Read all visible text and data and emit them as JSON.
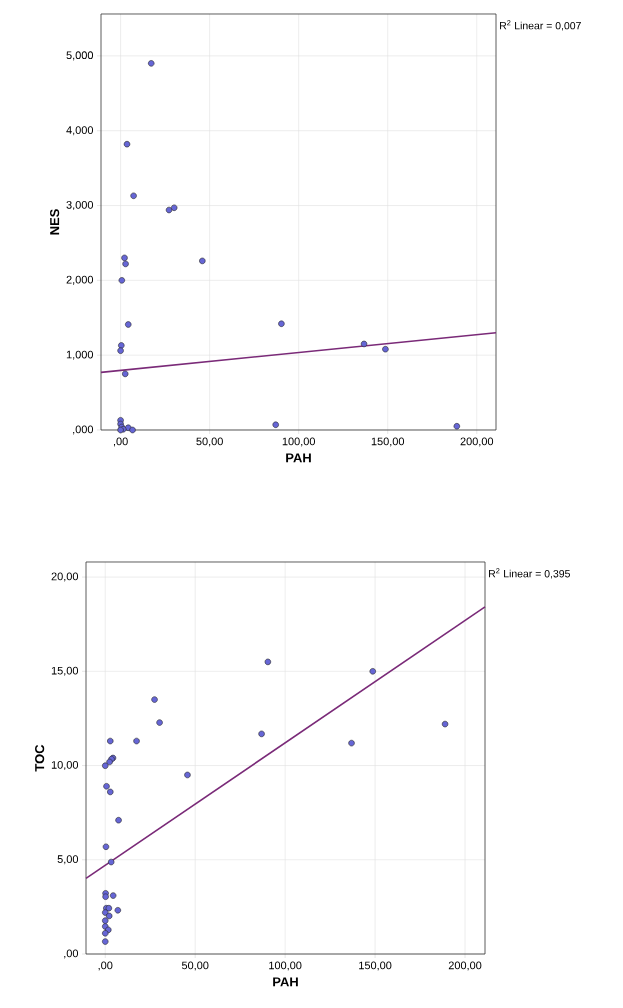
{
  "chart_data": [
    {
      "type": "scatter",
      "xlabel": "PAH",
      "ylabel": "NES",
      "annotations": [
        "R$^{2}$ Linear = 0,007"
      ],
      "grid": true,
      "xlim": [
        -11,
        210.8
      ],
      "ylim": [
        0,
        5.56
      ],
      "xticks": [
        {
          "value": 0,
          "label": ",00"
        },
        {
          "value": 50,
          "label": "50,00"
        },
        {
          "value": 100,
          "label": "100,00"
        },
        {
          "value": 150,
          "label": "150,00"
        },
        {
          "value": 200,
          "label": "200,00"
        }
      ],
      "yticks": [
        {
          "value": 0,
          "label": ",000"
        },
        {
          "value": 1,
          "label": "1,000"
        },
        {
          "value": 2,
          "label": "2,000"
        },
        {
          "value": 3,
          "label": "3,000"
        },
        {
          "value": 4,
          "label": "4,000"
        },
        {
          "value": 5,
          "label": "5,000"
        }
      ],
      "series": [
        {
          "marker": "circle",
          "color": "#6666d6",
          "x": [
            17.2,
            3.6,
            7.3,
            27.2,
            30.1,
            2.2,
            2.8,
            45.9,
            0.7,
            4.3,
            90.3,
            0.4,
            0,
            2.6,
            136.7,
            148.7,
            87.1,
            188.8,
            0,
            0,
            0.6,
            4.3,
            6.7,
            1.5,
            0
          ],
          "values": [
            4.9,
            3.82,
            3.13,
            2.94,
            2.97,
            2.3,
            2.22,
            2.26,
            2.0,
            1.41,
            1.42,
            1.13,
            1.06,
            0.75,
            1.15,
            1.08,
            0.07,
            0.05,
            0.13,
            0.08,
            0.04,
            0.03,
            0.0,
            0.01,
            0.0
          ]
        },
        {
          "type": "line",
          "marker": "none",
          "color": "#7a2a78",
          "line_style": "solid",
          "x": [
            -11,
            210.8
          ],
          "values": [
            0.77,
            1.3
          ]
        }
      ]
    },
    {
      "type": "scatter",
      "xlabel": "PAH",
      "ylabel": "TOC",
      "annotations": [
        "R$^{2}$ Linear = 0,395"
      ],
      "grid": true,
      "xlim": [
        -10.7,
        211.1
      ],
      "ylim": [
        0,
        20.8
      ],
      "xticks": [
        {
          "value": 0,
          "label": ",00"
        },
        {
          "value": 50,
          "label": "50,00"
        },
        {
          "value": 100,
          "label": "100,00"
        },
        {
          "value": 150,
          "label": "150,00"
        },
        {
          "value": 200,
          "label": "200,00"
        }
      ],
      "yticks": [
        {
          "value": 0,
          "label": ",00"
        },
        {
          "value": 5,
          "label": "5,00"
        },
        {
          "value": 10,
          "label": "10,00"
        },
        {
          "value": 15,
          "label": "15,00"
        },
        {
          "value": 20,
          "label": "20,00"
        }
      ],
      "series": [
        {
          "marker": "circle",
          "color": "#6666d6",
          "x": [
            90.4,
            148.7,
            27.4,
            30.2,
            86.9,
            188.9,
            136.9,
            17.4,
            2.8,
            4.3,
            3.5,
            2.4,
            0,
            45.7,
            0.7,
            2.8,
            7.4,
            0.4,
            3.3,
            0.2,
            0.2,
            4.4,
            0.6,
            2.0,
            7.0,
            0,
            2.2,
            0,
            0,
            1.7,
            0,
            0
          ],
          "values": [
            15.5,
            15.0,
            13.5,
            12.28,
            11.68,
            12.2,
            11.19,
            11.3,
            11.3,
            10.4,
            10.34,
            10.19,
            9.99,
            9.5,
            8.9,
            8.6,
            7.1,
            5.69,
            4.88,
            3.22,
            3.04,
            3.1,
            2.43,
            2.43,
            2.32,
            2.2,
            2.02,
            1.77,
            1.46,
            1.28,
            1.1,
            0.66
          ]
        },
        {
          "type": "line",
          "marker": "none",
          "color": "#7a2a78",
          "line_style": "solid",
          "x": [
            -10.7,
            211.1
          ],
          "values": [
            4.01,
            18.42
          ]
        }
      ]
    }
  ]
}
